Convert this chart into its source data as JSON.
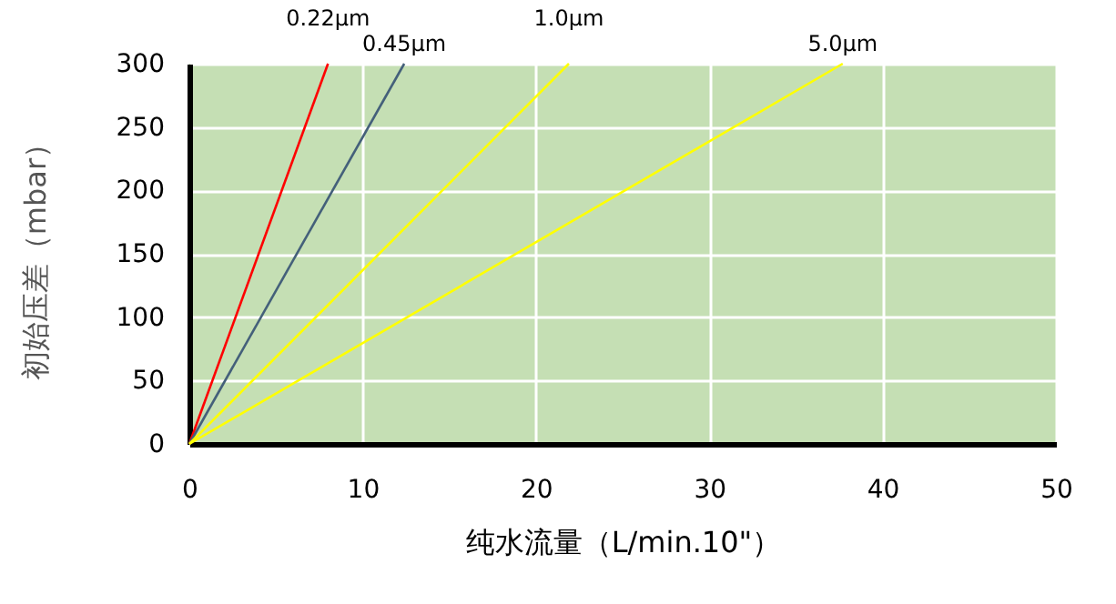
{
  "chart_data": {
    "type": "line",
    "xlabel": "纯水流量（L/min.10\"）",
    "ylabel": "初始压差（mbar）",
    "xlim": [
      0,
      50
    ],
    "xticks": [
      0,
      10,
      20,
      30,
      40,
      50
    ],
    "ylim": [
      0,
      300
    ],
    "yticks": [
      0,
      50,
      100,
      150,
      200,
      250,
      300
    ],
    "grid": true,
    "series": [
      {
        "name": "0.22μm",
        "color": "#ff0000",
        "x": [
          0,
          8.0
        ],
        "values": [
          0,
          300
        ]
      },
      {
        "name": "0.45μm",
        "color": "#44607a",
        "x": [
          0,
          12.4
        ],
        "values": [
          0,
          300
        ]
      },
      {
        "name": "1.0μm",
        "color": "#ffff00",
        "x": [
          0,
          21.9
        ],
        "values": [
          0,
          300
        ]
      },
      {
        "name": "5.0μm",
        "color": "#ffff00",
        "x": [
          0,
          37.7
        ],
        "values": [
          0,
          300
        ]
      }
    ]
  }
}
